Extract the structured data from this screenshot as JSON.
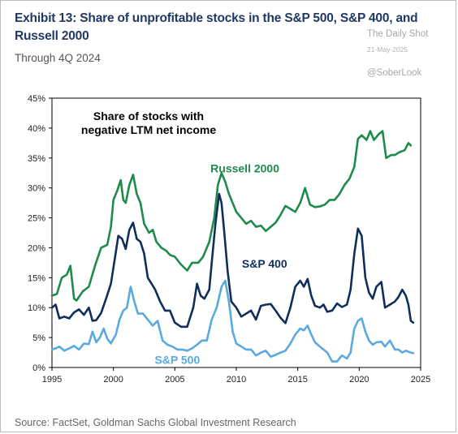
{
  "header": {
    "title": "Exhibit 13: Share of unprofitable stocks in the S&P 500, S&P 400, and Russell 2000",
    "subtitle": "Through 4Q 2024"
  },
  "watermark": {
    "line1": "The Daily Shot",
    "line2": "21-May-2025",
    "line3": "@SoberLook"
  },
  "footer": {
    "source": "Source: FactSet, Goldman Sachs Global Investment Research"
  },
  "chart_data": {
    "type": "line",
    "annotation": "Share of stocks with negative LTM net income",
    "annotation_lines": [
      "Share of stocks with",
      "negative LTM net income"
    ],
    "xlim": [
      1995,
      2025
    ],
    "ylim": [
      0,
      45
    ],
    "x_ticks": [
      1995,
      2000,
      2005,
      2010,
      2015,
      2020,
      2025
    ],
    "y_ticks": [
      0,
      5,
      10,
      15,
      20,
      25,
      30,
      35,
      40,
      45
    ],
    "y_tick_labels": [
      "0%",
      "5%",
      "10%",
      "15%",
      "20%",
      "25%",
      "30%",
      "35%",
      "40%",
      "45%"
    ],
    "grid": false,
    "series": [
      {
        "name": "Russell 2000",
        "color": "#1f8a4c",
        "points": [
          [
            1995,
            12
          ],
          [
            1995.4,
            12.3
          ],
          [
            1995.8,
            15
          ],
          [
            1996.2,
            15.5
          ],
          [
            1996.5,
            17
          ],
          [
            1996.8,
            11.5
          ],
          [
            1997,
            11.2
          ],
          [
            1997.5,
            12.7
          ],
          [
            1998,
            13.5
          ],
          [
            1998.5,
            17
          ],
          [
            1999,
            20
          ],
          [
            1999.5,
            20.5
          ],
          [
            1999.8,
            23.5
          ],
          [
            2000,
            28
          ],
          [
            2000.3,
            29.5
          ],
          [
            2000.6,
            31.3
          ],
          [
            2000.8,
            28
          ],
          [
            2001,
            27.5
          ],
          [
            2001.3,
            30.5
          ],
          [
            2001.6,
            32.2
          ],
          [
            2001.9,
            29
          ],
          [
            2002.2,
            27.5
          ],
          [
            2002.5,
            24
          ],
          [
            2002.9,
            22.5
          ],
          [
            2003.2,
            23
          ],
          [
            2003.5,
            21
          ],
          [
            2003.9,
            20
          ],
          [
            2004.3,
            19.5
          ],
          [
            2004.6,
            18.8
          ],
          [
            2005,
            18.5
          ],
          [
            2005.5,
            17.2
          ],
          [
            2006,
            16.2
          ],
          [
            2006.4,
            17.5
          ],
          [
            2006.9,
            17.5
          ],
          [
            2007.3,
            18.5
          ],
          [
            2007.8,
            21
          ],
          [
            2008.2,
            25
          ],
          [
            2008.5,
            30.5
          ],
          [
            2008.8,
            32.5
          ],
          [
            2009.1,
            31
          ],
          [
            2009.4,
            29
          ],
          [
            2009.7,
            27.5
          ],
          [
            2010,
            26
          ],
          [
            2010.4,
            25
          ],
          [
            2010.8,
            24
          ],
          [
            2011.2,
            24.5
          ],
          [
            2011.6,
            23.5
          ],
          [
            2012,
            23.7
          ],
          [
            2012.4,
            22.8
          ],
          [
            2012.8,
            23.5
          ],
          [
            2013.2,
            24.2
          ],
          [
            2013.6,
            25.5
          ],
          [
            2014,
            27
          ],
          [
            2014.4,
            26.5
          ],
          [
            2014.8,
            26
          ],
          [
            2015.2,
            27.5
          ],
          [
            2015.6,
            30
          ],
          [
            2016,
            27.2
          ],
          [
            2016.4,
            26.8
          ],
          [
            2016.8,
            26.9
          ],
          [
            2017.2,
            27.2
          ],
          [
            2017.6,
            28
          ],
          [
            2018,
            28
          ],
          [
            2018.4,
            29
          ],
          [
            2018.8,
            30.5
          ],
          [
            2019.2,
            31.5
          ],
          [
            2019.6,
            33.5
          ],
          [
            2019.9,
            38.2
          ],
          [
            2020.2,
            38.8
          ],
          [
            2020.6,
            38
          ],
          [
            2020.9,
            39.5
          ],
          [
            2021.2,
            38
          ],
          [
            2021.6,
            39
          ],
          [
            2021.9,
            39.5
          ],
          [
            2022.2,
            35
          ],
          [
            2022.6,
            35.5
          ],
          [
            2022.9,
            35.5
          ],
          [
            2023.3,
            36
          ],
          [
            2023.7,
            36.3
          ],
          [
            2024,
            37.5
          ],
          [
            2024.2,
            37.1
          ]
        ]
      },
      {
        "name": "S&P 400",
        "color": "#0f2e5a",
        "points": [
          [
            1995,
            10
          ],
          [
            1995.3,
            10.5
          ],
          [
            1995.6,
            8.2
          ],
          [
            1996,
            8.5
          ],
          [
            1996.4,
            8.2
          ],
          [
            1996.8,
            9.2
          ],
          [
            1997.2,
            9.7
          ],
          [
            1997.6,
            8.8
          ],
          [
            1998,
            10
          ],
          [
            1998.3,
            7.8
          ],
          [
            1998.6,
            7.9
          ],
          [
            1999,
            9.1
          ],
          [
            1999.4,
            11.5
          ],
          [
            1999.8,
            14
          ],
          [
            2000.1,
            18
          ],
          [
            2000.4,
            22
          ],
          [
            2000.7,
            21.5
          ],
          [
            2001,
            19.8
          ],
          [
            2001.3,
            23
          ],
          [
            2001.6,
            24.2
          ],
          [
            2001.9,
            21.5
          ],
          [
            2002.2,
            21
          ],
          [
            2002.5,
            19
          ],
          [
            2002.8,
            15
          ],
          [
            2003.1,
            14
          ],
          [
            2003.4,
            13
          ],
          [
            2003.8,
            11
          ],
          [
            2004.2,
            9.5
          ],
          [
            2004.6,
            9.5
          ],
          [
            2005,
            7.5
          ],
          [
            2005.5,
            6.8
          ],
          [
            2006,
            6.8
          ],
          [
            2006.5,
            10
          ],
          [
            2006.8,
            14
          ],
          [
            2007.1,
            12
          ],
          [
            2007.4,
            11.5
          ],
          [
            2007.8,
            13
          ],
          [
            2008,
            17.5
          ],
          [
            2008.3,
            24
          ],
          [
            2008.6,
            29
          ],
          [
            2008.8,
            27.5
          ],
          [
            2009,
            23
          ],
          [
            2009.3,
            16
          ],
          [
            2009.6,
            11
          ],
          [
            2010,
            10
          ],
          [
            2010.4,
            8.5
          ],
          [
            2010.8,
            9
          ],
          [
            2011.2,
            9.5
          ],
          [
            2011.6,
            8
          ],
          [
            2012,
            10.3
          ],
          [
            2012.4,
            10.5
          ],
          [
            2012.8,
            10.6
          ],
          [
            2013.2,
            9.5
          ],
          [
            2013.6,
            8.3
          ],
          [
            2014,
            7.4
          ],
          [
            2014.4,
            10
          ],
          [
            2014.8,
            13.5
          ],
          [
            2015.2,
            14.5
          ],
          [
            2015.5,
            13.5
          ],
          [
            2015.8,
            14.8
          ],
          [
            2016.1,
            12
          ],
          [
            2016.4,
            10.3
          ],
          [
            2016.8,
            10
          ],
          [
            2017.1,
            10.5
          ],
          [
            2017.4,
            9.3
          ],
          [
            2017.8,
            9.5
          ],
          [
            2018.2,
            10.7
          ],
          [
            2018.6,
            10.1
          ],
          [
            2019,
            10.5
          ],
          [
            2019.3,
            13
          ],
          [
            2019.6,
            19
          ],
          [
            2019.9,
            23.2
          ],
          [
            2020.2,
            22
          ],
          [
            2020.5,
            15
          ],
          [
            2020.8,
            12.5
          ],
          [
            2021.1,
            11.5
          ],
          [
            2021.4,
            13.5
          ],
          [
            2021.8,
            14.3
          ],
          [
            2022.1,
            10
          ],
          [
            2022.5,
            10.5
          ],
          [
            2022.9,
            11
          ],
          [
            2023.2,
            11.8
          ],
          [
            2023.5,
            13
          ],
          [
            2023.8,
            12
          ],
          [
            2024,
            10.5
          ],
          [
            2024.2,
            7.8
          ],
          [
            2024.4,
            7.5
          ]
        ]
      },
      {
        "name": "S&P 500",
        "color": "#5aa9e0",
        "points": [
          [
            1995,
            3
          ],
          [
            1995.3,
            3.2
          ],
          [
            1995.6,
            3.5
          ],
          [
            1996,
            2.8
          ],
          [
            1996.4,
            3.2
          ],
          [
            1996.8,
            3.6
          ],
          [
            1997.2,
            3
          ],
          [
            1997.6,
            4
          ],
          [
            1998,
            3.9
          ],
          [
            1998.3,
            6
          ],
          [
            1998.6,
            4.2
          ],
          [
            1998.9,
            5
          ],
          [
            1999.2,
            6.5
          ],
          [
            1999.5,
            4.8
          ],
          [
            1999.8,
            4
          ],
          [
            2000.2,
            5.5
          ],
          [
            2000.5,
            8
          ],
          [
            2000.8,
            9.5
          ],
          [
            2001.1,
            10
          ],
          [
            2001.4,
            13.5
          ],
          [
            2001.7,
            11
          ],
          [
            2002,
            9
          ],
          [
            2002.4,
            9
          ],
          [
            2002.8,
            8
          ],
          [
            2003.2,
            7
          ],
          [
            2003.6,
            7.8
          ],
          [
            2004,
            4.5
          ],
          [
            2004.4,
            3.8
          ],
          [
            2004.8,
            3.5
          ],
          [
            2005.2,
            3
          ],
          [
            2005.6,
            3
          ],
          [
            2006,
            2.8
          ],
          [
            2006.4,
            3.2
          ],
          [
            2006.8,
            3.8
          ],
          [
            2007.2,
            4.5
          ],
          [
            2007.6,
            4.5
          ],
          [
            2008,
            8
          ],
          [
            2008.4,
            10
          ],
          [
            2008.8,
            13.5
          ],
          [
            2009.1,
            14.5
          ],
          [
            2009.4,
            11
          ],
          [
            2009.7,
            6
          ],
          [
            2010,
            4
          ],
          [
            2010.4,
            3.5
          ],
          [
            2010.8,
            3
          ],
          [
            2011.2,
            3
          ],
          [
            2011.6,
            2
          ],
          [
            2012,
            2.5
          ],
          [
            2012.4,
            2.8
          ],
          [
            2012.8,
            1.8
          ],
          [
            2013.2,
            2.1
          ],
          [
            2013.6,
            2.5
          ],
          [
            2014,
            2.8
          ],
          [
            2014.4,
            4
          ],
          [
            2014.8,
            5.5
          ],
          [
            2015.2,
            6.5
          ],
          [
            2015.5,
            6.2
          ],
          [
            2015.8,
            7
          ],
          [
            2016.1,
            5.5
          ],
          [
            2016.4,
            4.2
          ],
          [
            2016.8,
            3.5
          ],
          [
            2017.1,
            3
          ],
          [
            2017.4,
            2.5
          ],
          [
            2017.8,
            1
          ],
          [
            2018.2,
            1
          ],
          [
            2018.6,
            2
          ],
          [
            2019,
            1.5
          ],
          [
            2019.3,
            2.5
          ],
          [
            2019.6,
            6.5
          ],
          [
            2019.9,
            7.8
          ],
          [
            2020.2,
            8.2
          ],
          [
            2020.5,
            6
          ],
          [
            2020.8,
            4.5
          ],
          [
            2021.1,
            3.8
          ],
          [
            2021.4,
            4.2
          ],
          [
            2021.8,
            4.3
          ],
          [
            2022.1,
            3.5
          ],
          [
            2022.5,
            4.5
          ],
          [
            2022.9,
            3
          ],
          [
            2023.2,
            3
          ],
          [
            2023.5,
            2.5
          ],
          [
            2023.8,
            2.8
          ],
          [
            2024.2,
            2.5
          ],
          [
            2024.4,
            2.4
          ]
        ]
      }
    ],
    "series_labels": [
      {
        "name": "Russell 2000",
        "x": 2010.7,
        "y": 32.6,
        "color": "#1f8a4c"
      },
      {
        "name": "S&P 400",
        "x": 2012.3,
        "y": 16.7,
        "color": "#0f2e5a"
      },
      {
        "name": "S&P 500",
        "x": 2005.2,
        "y": 0.6,
        "color": "#5aa9e0"
      }
    ]
  }
}
